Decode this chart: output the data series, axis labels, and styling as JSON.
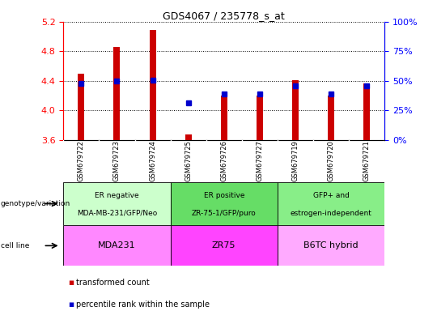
{
  "title": "GDS4067 / 235778_s_at",
  "samples": [
    "GSM679722",
    "GSM679723",
    "GSM679724",
    "GSM679725",
    "GSM679726",
    "GSM679727",
    "GSM679719",
    "GSM679720",
    "GSM679721"
  ],
  "red_values": [
    4.5,
    4.86,
    5.09,
    3.68,
    4.2,
    4.2,
    4.41,
    4.2,
    4.36
  ],
  "blue_values": [
    4.36,
    4.4,
    4.41,
    4.1,
    4.22,
    4.22,
    4.33,
    4.22,
    4.33
  ],
  "ylim_left": [
    3.6,
    5.2
  ],
  "ylim_right": [
    0,
    100
  ],
  "yticks_left": [
    3.6,
    4.0,
    4.4,
    4.8,
    5.2
  ],
  "yticks_right": [
    0,
    25,
    50,
    75,
    100
  ],
  "bar_color": "#cc0000",
  "dot_color": "#0000cc",
  "bar_width": 0.18,
  "baseline": 3.6,
  "groups": [
    {
      "label": "ER negative\nMDA-MB-231/GFP/Neo",
      "cell_line": "MDA231",
      "span": [
        0,
        3
      ],
      "geno_color": "#ccffcc",
      "cell_color": "#ff88ff"
    },
    {
      "label": "ER positive\nZR-75-1/GFP/puro",
      "cell_line": "ZR75",
      "span": [
        3,
        6
      ],
      "geno_color": "#66dd66",
      "cell_color": "#ff44ff"
    },
    {
      "label": "GFP+ and\nestrogen-independent",
      "cell_line": "B6TC hybrid",
      "span": [
        6,
        9
      ],
      "geno_color": "#88ee88",
      "cell_color": "#ffaaff"
    }
  ],
  "sample_bg_color": "#cccccc",
  "legend_items": [
    {
      "label": "transformed count",
      "color": "#cc0000"
    },
    {
      "label": "percentile rank within the sample",
      "color": "#0000cc"
    }
  ],
  "left_labels": [
    {
      "text": "genotype/variation",
      "row": "geno"
    },
    {
      "text": "cell line",
      "row": "cell"
    }
  ]
}
